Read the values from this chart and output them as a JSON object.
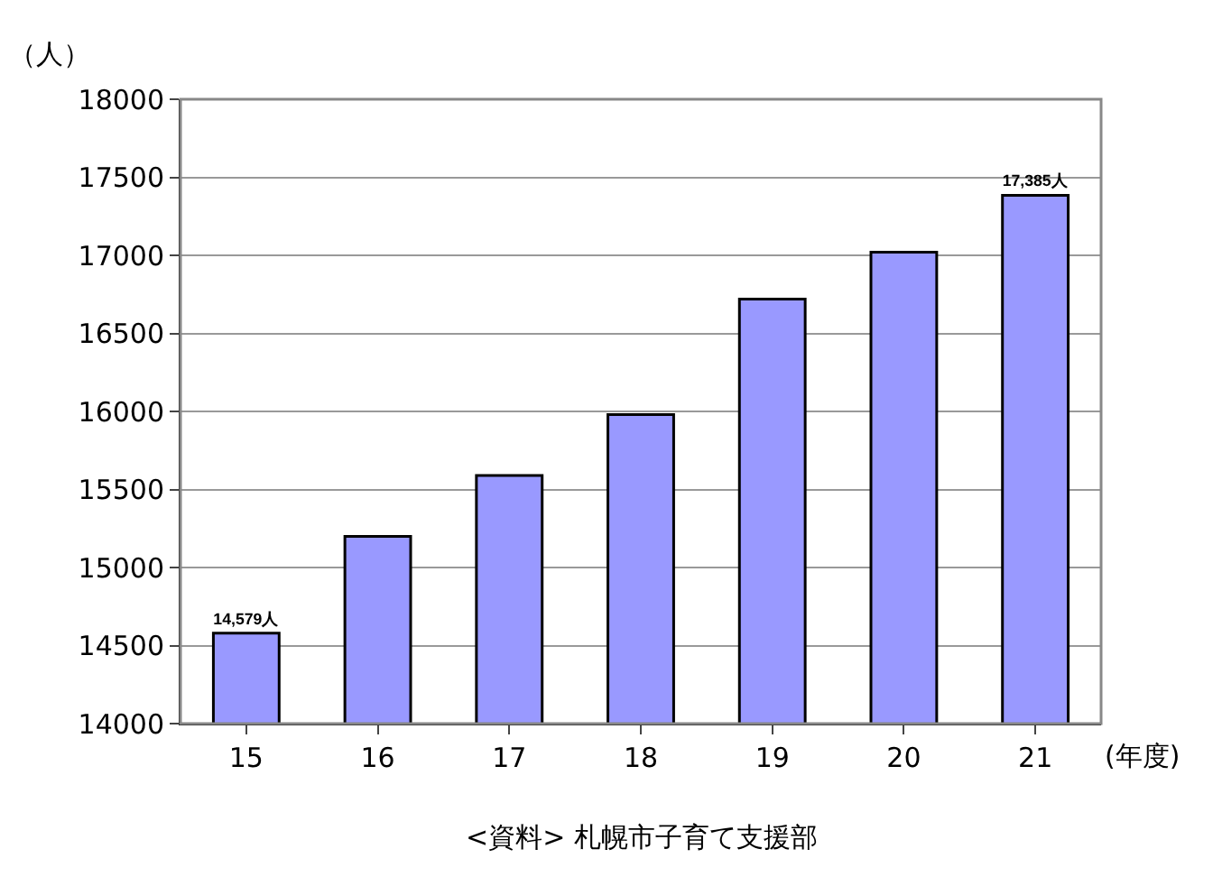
{
  "chart_data": {
    "type": "bar",
    "categories": [
      "15",
      "16",
      "17",
      "18",
      "19",
      "20",
      "21"
    ],
    "values": [
      14579,
      15200,
      15590,
      15980,
      16720,
      17020,
      17385
    ],
    "value_labels": [
      "14,579人",
      null,
      null,
      null,
      null,
      null,
      "17,385人"
    ],
    "color": "#9999ff",
    "ylim": [
      14000,
      18000
    ],
    "yticks": [
      14000,
      14500,
      15000,
      15500,
      16000,
      16500,
      17000,
      17500,
      18000
    ],
    "grid": "y",
    "xlabel": "(年度)",
    "ylabel": "（人）",
    "annotations": [
      "<資料> 札幌市子育て支援部"
    ]
  }
}
